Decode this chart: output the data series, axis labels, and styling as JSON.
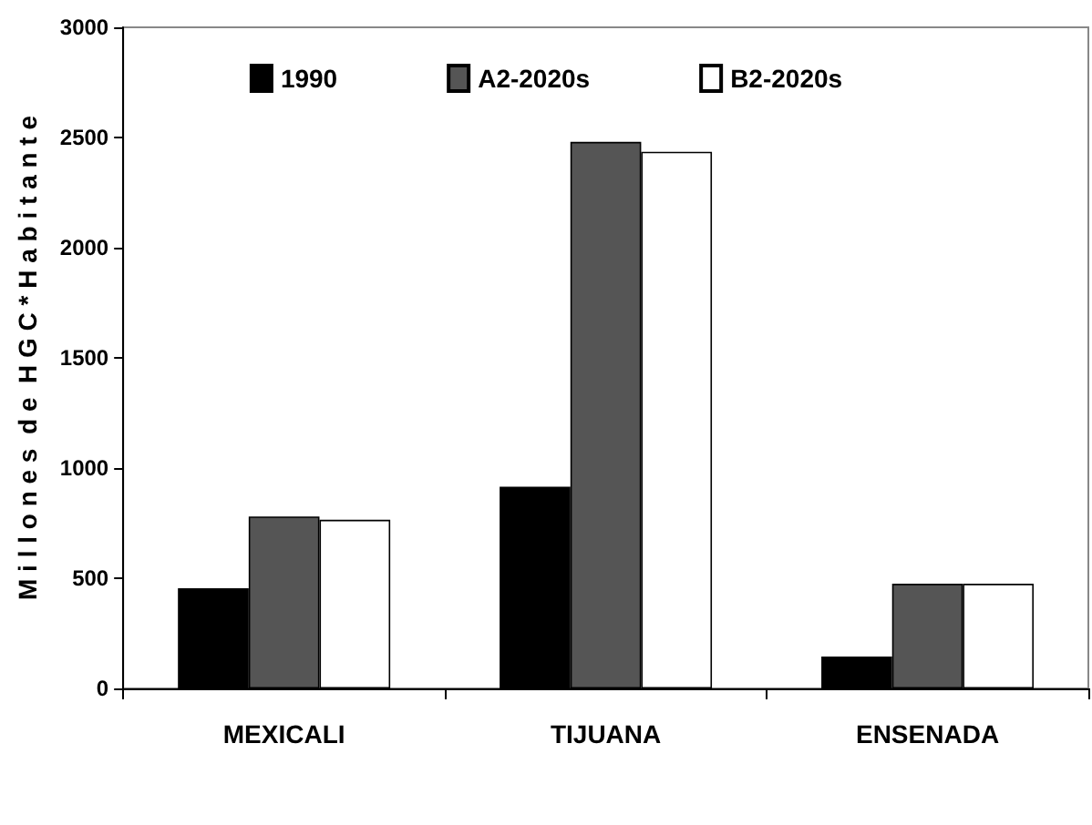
{
  "chart_data": {
    "type": "bar",
    "ylabel": "M i l l o n e s  d e  H G C * H a b i t a n t e",
    "categories": [
      "MEXICALI",
      "TIJUANA",
      "ENSENADA"
    ],
    "series": [
      {
        "name": "1990",
        "color": "#000000",
        "values": [
          455,
          915,
          145
        ]
      },
      {
        "name": "A2-2020s",
        "color": "#555555",
        "values": [
          780,
          2480,
          475
        ]
      },
      {
        "name": "B2-2020s",
        "color": "#ffffff",
        "values": [
          765,
          2435,
          475
        ]
      }
    ],
    "ylim": [
      0,
      3000
    ],
    "yticks": [
      0,
      500,
      1000,
      1500,
      2000,
      2500,
      3000
    ],
    "grid": false,
    "legend": "top"
  }
}
